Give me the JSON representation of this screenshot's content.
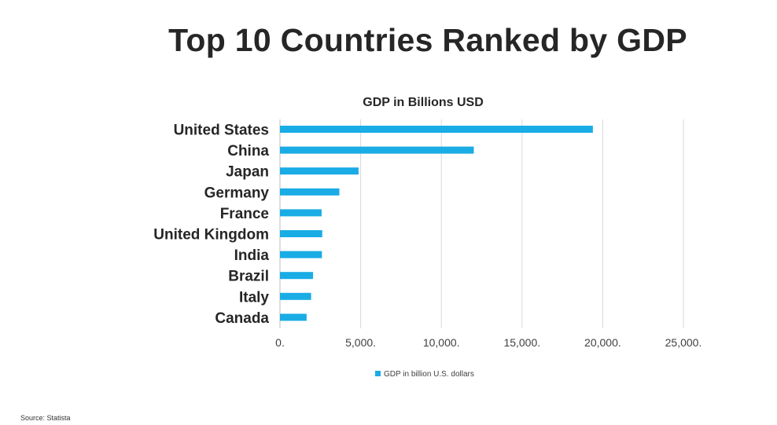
{
  "page": {
    "title": "Top 10 Countries Ranked by GDP",
    "source": "Source: Statista"
  },
  "colors": {
    "bar": "#1aace5",
    "grid": "#d9d9d9",
    "text": "#262626"
  },
  "chart_data": {
    "type": "bar",
    "orientation": "horizontal",
    "title": "GDP in Billions USD",
    "categories": [
      "United States",
      "China",
      "Japan",
      "Germany",
      "France",
      "United Kingdom",
      "India",
      "Brazil",
      "Italy",
      "Canada"
    ],
    "series": [
      {
        "name": "GDP in billion U.S. dollars",
        "values": [
          19390,
          12010,
          4870,
          3680,
          2580,
          2620,
          2600,
          2050,
          1930,
          1650
        ]
      }
    ],
    "xlim": [
      0,
      25000
    ],
    "xticks": [
      0,
      5000,
      10000,
      15000,
      20000,
      25000
    ],
    "xtick_labels": [
      "0.",
      "5,000.",
      "10,000.",
      "15,000.",
      "20,000.",
      "25,000."
    ],
    "grid": true,
    "legend": "bottom"
  }
}
